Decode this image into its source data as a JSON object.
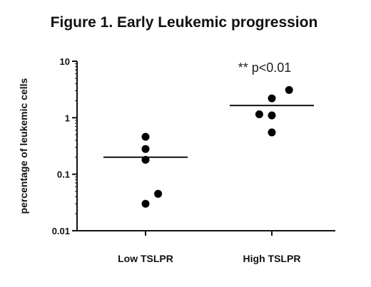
{
  "chart_data": {
    "type": "scatter",
    "title": "Figure 1. Early Leukemic progression",
    "xlabel": "",
    "ylabel": "percentage of leukemic cells",
    "yscale": "log",
    "ylim": [
      0.01,
      10
    ],
    "yticks": [
      {
        "value": 10,
        "label": "10"
      },
      {
        "value": 1,
        "label": "1"
      },
      {
        "value": 0.1,
        "label": "0.1"
      },
      {
        "value": 0.01,
        "label": "0.01"
      }
    ],
    "categories": [
      "Low TSLPR",
      "High TSLPR"
    ],
    "groups": [
      {
        "category": "Low TSLPR",
        "points": [
          0.46,
          0.28,
          0.18,
          0.045,
          0.03
        ],
        "offsets": [
          0,
          0,
          0,
          0.8,
          0
        ],
        "line": 0.2
      },
      {
        "category": "High TSLPR",
        "points": [
          3.1,
          2.2,
          1.15,
          1.1,
          0.55
        ],
        "offsets": [
          1.1,
          0,
          -0.8,
          0,
          0
        ],
        "line": 1.65
      }
    ],
    "annotations": [
      {
        "text": "** p<0.01",
        "category": "High TSLPR",
        "value": 6.5
      }
    ],
    "grid": false,
    "legend": "none"
  }
}
